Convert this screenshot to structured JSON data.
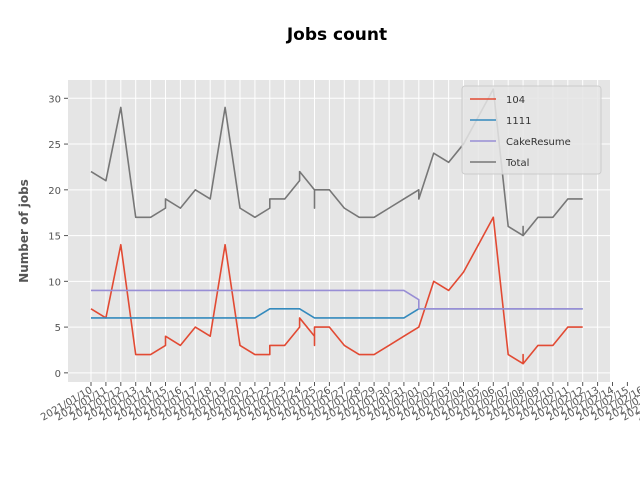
{
  "chart_data": {
    "type": "line",
    "title": "Jobs count",
    "xlabel": "",
    "ylabel": "Number of jobs",
    "ylim": [
      -1,
      32
    ],
    "yticks": [
      0,
      5,
      10,
      15,
      20,
      25,
      30
    ],
    "grid": true,
    "legend_position": "top-right",
    "x_tick_labels": [
      "2021/01/10",
      "2021/01/11",
      "2021/01/12",
      "2021/01/13",
      "2021/01/14",
      "2021/01/15",
      "2021/01/16",
      "2021/01/17",
      "2021/01/18",
      "2021/01/19",
      "2021/01/20",
      "2021/01/21",
      "2021/01/22",
      "2021/01/23",
      "2021/01/24",
      "2021/01/25",
      "2021/01/26",
      "2021/01/27",
      "2021/01/28",
      "2021/01/29",
      "2021/01/30",
      "2021/01/31",
      "2021/02/01",
      "2021/02/02",
      "2021/02/03",
      "2021/02/04",
      "2021/02/05",
      "2021/02/06",
      "2021/02/07",
      "2021/02/08",
      "2021/02/09",
      "2021/02/10",
      "2021/02/11",
      "2021/02/12",
      "2021/02/13",
      "2021/02/14",
      "2021/02/15",
      "2021/02/16",
      "2021/02/17",
      "2021/02/18",
      "2021/02/19",
      "2021/02/20",
      "2021/02/21"
    ],
    "x_tick_label_text": [
      "2021/01/10",
      "2021/01/11",
      "2021/01/12",
      "2021/01/13",
      "2021/01/14",
      "2021/01/15",
      "2021/01/16",
      "2021/01/17",
      "2021/01/18",
      "2021/01/19",
      "2021/01/20",
      "2021/01/21",
      "2021/01/22",
      "2021/01/23",
      "2021/01/24",
      "2021/01/25",
      "2021/01/26",
      "2021/01/27",
      "2021/01/28",
      "2021/01/29",
      "2021/01/30",
      "2021/01/31",
      "2021/02/01",
      "2021/02/02",
      "2021/02/03",
      "2021/02/04",
      "2021/02/05",
      "2021/02/06",
      "2021/02/07",
      "2021/02/08",
      "2021/02/09",
      "2021/02/10",
      "2021/02/11",
      "2021/02/12",
      "2021/02/13",
      "2021/02/14",
      "2021/02/15",
      "2021/02/16",
      "2021/02/17",
      "2021/02/18",
      "2021/02/19",
      "2021/02/20",
      "2021/02/21"
    ],
    "series": [
      {
        "name": "104",
        "color": "#E24A33",
        "points": [
          [
            0,
            7
          ],
          [
            1,
            6
          ],
          [
            2,
            14
          ],
          [
            3,
            2
          ],
          [
            4,
            2
          ],
          [
            5,
            3
          ],
          [
            5,
            4
          ],
          [
            6,
            3
          ],
          [
            7,
            5
          ],
          [
            8,
            4
          ],
          [
            9,
            14
          ],
          [
            10,
            3
          ],
          [
            11,
            2
          ],
          [
            12,
            2
          ],
          [
            12,
            3
          ],
          [
            13,
            3
          ],
          [
            14,
            5
          ],
          [
            14,
            6
          ],
          [
            15,
            4
          ],
          [
            15,
            3
          ],
          [
            15,
            5
          ],
          [
            16,
            5
          ],
          [
            17,
            3
          ],
          [
            18,
            2
          ],
          [
            19,
            2
          ],
          [
            20,
            3
          ],
          [
            21,
            4
          ],
          [
            22,
            5
          ],
          [
            23,
            10
          ],
          [
            24,
            9
          ],
          [
            25,
            11
          ],
          [
            26,
            14
          ],
          [
            27,
            17
          ],
          [
            28,
            2
          ],
          [
            29,
            1
          ],
          [
            29,
            2
          ],
          [
            29,
            1
          ],
          [
            30,
            3
          ],
          [
            31,
            3
          ],
          [
            32,
            5
          ],
          [
            33,
            5
          ]
        ]
      },
      {
        "name": "1111",
        "color": "#348ABD",
        "points": [
          [
            0,
            6
          ],
          [
            1,
            6
          ],
          [
            2,
            6
          ],
          [
            3,
            6
          ],
          [
            4,
            6
          ],
          [
            5,
            6
          ],
          [
            6,
            6
          ],
          [
            7,
            6
          ],
          [
            8,
            6
          ],
          [
            9,
            6
          ],
          [
            10,
            6
          ],
          [
            11,
            6
          ],
          [
            12,
            7
          ],
          [
            13,
            7
          ],
          [
            14,
            7
          ],
          [
            15,
            6
          ],
          [
            16,
            6
          ],
          [
            17,
            6
          ],
          [
            18,
            6
          ],
          [
            19,
            6
          ],
          [
            20,
            6
          ],
          [
            21,
            6
          ],
          [
            22,
            7
          ],
          [
            23,
            7
          ],
          [
            24,
            7
          ],
          [
            25,
            7
          ],
          [
            26,
            7
          ],
          [
            27,
            7
          ],
          [
            28,
            7
          ],
          [
            29,
            7
          ],
          [
            30,
            7
          ],
          [
            31,
            7
          ],
          [
            32,
            7
          ],
          [
            33,
            7
          ]
        ]
      },
      {
        "name": "CakeResume",
        "color": "#988ED5",
        "points": [
          [
            0,
            9
          ],
          [
            1,
            9
          ],
          [
            2,
            9
          ],
          [
            3,
            9
          ],
          [
            4,
            9
          ],
          [
            5,
            9
          ],
          [
            6,
            9
          ],
          [
            7,
            9
          ],
          [
            8,
            9
          ],
          [
            9,
            9
          ],
          [
            10,
            9
          ],
          [
            11,
            9
          ],
          [
            12,
            9
          ],
          [
            13,
            9
          ],
          [
            14,
            9
          ],
          [
            15,
            9
          ],
          [
            16,
            9
          ],
          [
            17,
            9
          ],
          [
            18,
            9
          ],
          [
            19,
            9
          ],
          [
            20,
            9
          ],
          [
            21,
            9
          ],
          [
            22,
            8
          ],
          [
            22,
            7
          ],
          [
            23,
            7
          ],
          [
            24,
            7
          ],
          [
            25,
            7
          ],
          [
            26,
            7
          ],
          [
            27,
            7
          ],
          [
            28,
            7
          ],
          [
            29,
            7
          ],
          [
            30,
            7
          ],
          [
            31,
            7
          ],
          [
            32,
            7
          ],
          [
            33,
            7
          ]
        ]
      },
      {
        "name": "Total",
        "color": "#777777",
        "points": [
          [
            0,
            22
          ],
          [
            1,
            21
          ],
          [
            2,
            29
          ],
          [
            3,
            17
          ],
          [
            4,
            17
          ],
          [
            5,
            18
          ],
          [
            5,
            19
          ],
          [
            6,
            18
          ],
          [
            7,
            20
          ],
          [
            8,
            19
          ],
          [
            9,
            29
          ],
          [
            10,
            18
          ],
          [
            11,
            17
          ],
          [
            12,
            18
          ],
          [
            12,
            19
          ],
          [
            13,
            19
          ],
          [
            14,
            21
          ],
          [
            14,
            22
          ],
          [
            15,
            20
          ],
          [
            15,
            18
          ],
          [
            15,
            20
          ],
          [
            16,
            20
          ],
          [
            17,
            18
          ],
          [
            18,
            17
          ],
          [
            19,
            17
          ],
          [
            20,
            18
          ],
          [
            21,
            19
          ],
          [
            22,
            20
          ],
          [
            22,
            19
          ],
          [
            23,
            24
          ],
          [
            24,
            23
          ],
          [
            25,
            25
          ],
          [
            26,
            28
          ],
          [
            27,
            31
          ],
          [
            28,
            16
          ],
          [
            29,
            15
          ],
          [
            29,
            16
          ],
          [
            29,
            15
          ],
          [
            30,
            17
          ],
          [
            31,
            17
          ],
          [
            32,
            19
          ],
          [
            33,
            19
          ]
        ]
      }
    ]
  }
}
